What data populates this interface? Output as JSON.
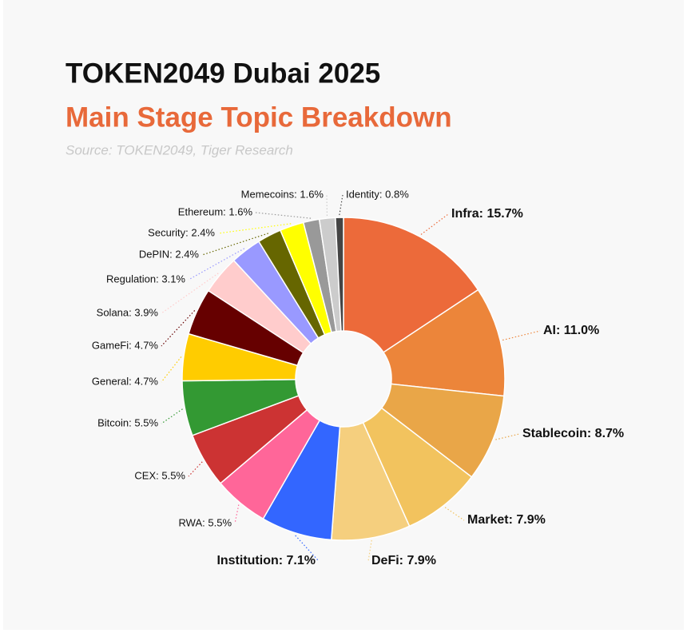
{
  "chart_data": {
    "type": "pie",
    "title": "TOKEN2049 Dubai 2025",
    "subtitle": "Main Stage Topic Breakdown",
    "source": "Source: TOKEN2049, Tiger Research",
    "values": [
      15.7,
      11.0,
      8.7,
      7.9,
      7.9,
      7.1,
      5.5,
      5.5,
      5.5,
      4.7,
      4.7,
      3.9,
      3.1,
      2.4,
      2.4,
      1.6,
      1.6,
      0.8
    ],
    "value_labels": [
      "Infra: 15.7%",
      "AI: 11.0%",
      "Stablecoin: 8.7%",
      "Market: 7.9%",
      "DeFi: 7.9%",
      "Institution: 7.1%",
      "RWA: 5.5%",
      "CEX: 5.5%",
      "Bitcoin: 5.5%",
      "General: 4.7%",
      "GameFi: 4.7%",
      "Solana: 3.9%",
      "Regulation: 3.1%",
      "DePIN: 2.4%",
      "Security: 2.4%",
      "Ethereum: 1.6%",
      "Memecoins: 1.6%",
      "Identity: 0.8%"
    ],
    "colors": [
      "#ec6a3a",
      "#ec853a",
      "#e9a648",
      "#f2c35e",
      "#f5cf7e",
      "#3366ff",
      "#ff6699",
      "#cc3333",
      "#339933",
      "#ffcc00",
      "#660000",
      "#ffcccc",
      "#9999ff",
      "#666600",
      "#ffff00",
      "#999999",
      "#cccccc",
      "#444444"
    ],
    "donut": true
  }
}
